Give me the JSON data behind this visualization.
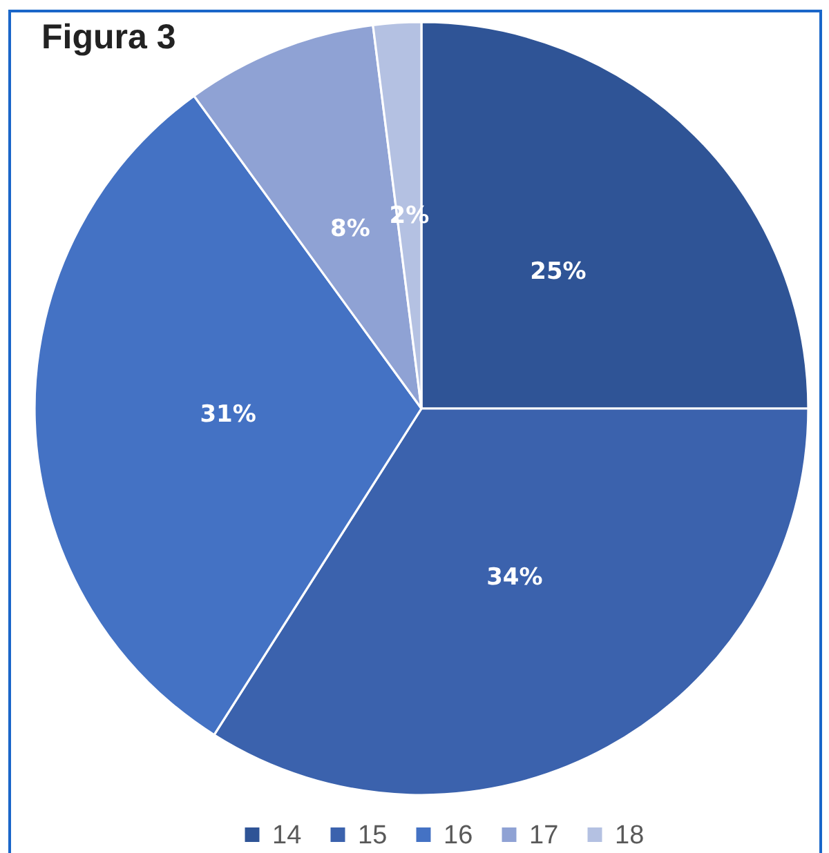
{
  "chart_data": {
    "type": "pie",
    "title": "Figura 3",
    "categories": [
      "14",
      "15",
      "16",
      "17",
      "18"
    ],
    "values": [
      25,
      34,
      31,
      8,
      2
    ],
    "colors": [
      "#2f5496",
      "#3b62ad",
      "#4472c4",
      "#8fa2d4",
      "#b4c1e2"
    ],
    "value_labels": [
      "25%",
      "34%",
      "31%",
      "8%",
      "2%"
    ],
    "legend": "bottom"
  }
}
